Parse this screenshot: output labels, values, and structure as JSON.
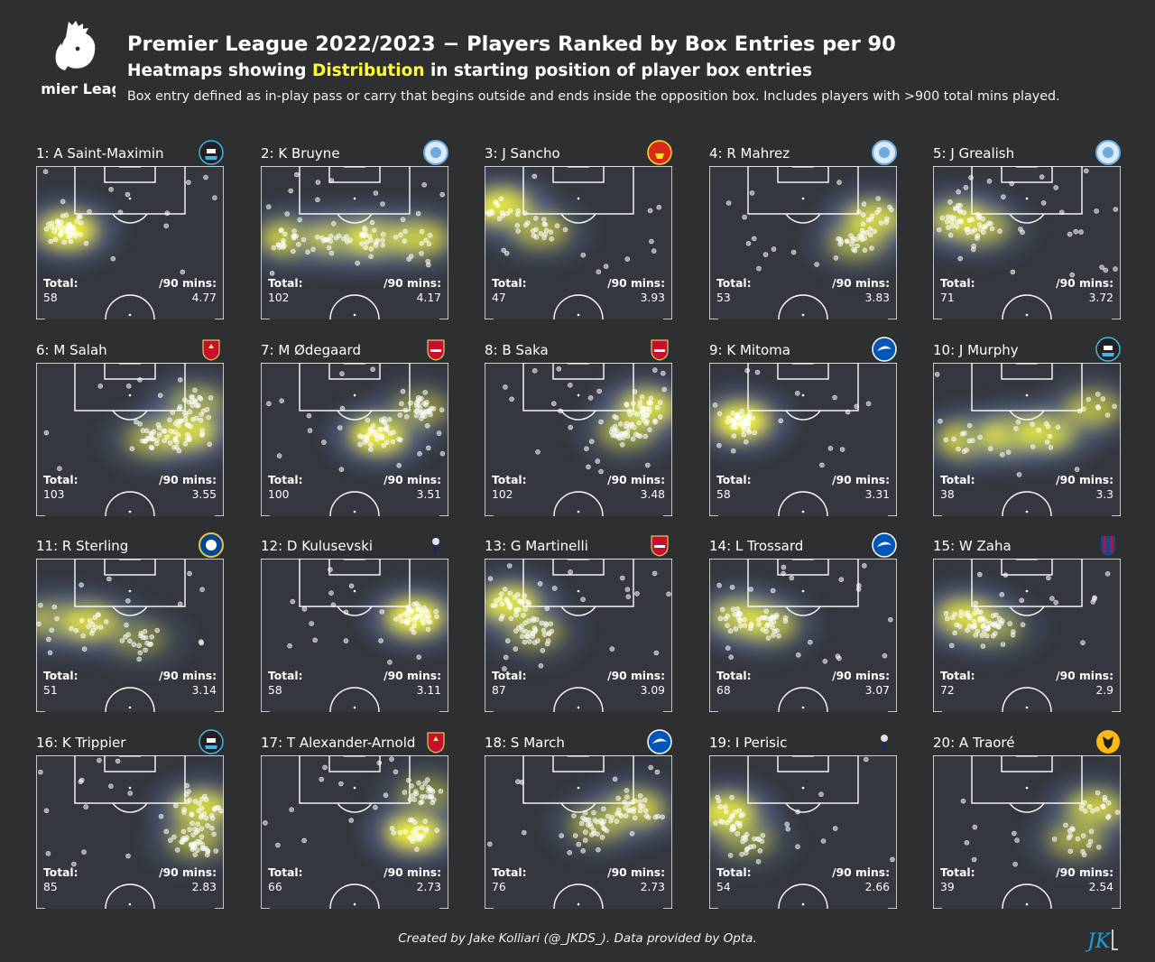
{
  "header": {
    "logo_text": "Premier League",
    "title": "Premier League 2022/2023 − Players Ranked by Box Entries per 90",
    "subtitle_before": "Heatmaps showing ",
    "subtitle_highlight": "Distribution",
    "subtitle_after": " in starting position of player box entries",
    "description": "Box entry defined as in-play pass or carry that begins outside and ends inside the opposition box. Includes players with >900 total mins played."
  },
  "footer": "Created by Jake Kolliari (@_JKDS_). Data provided by Opta.",
  "signature": "JK",
  "colors": {
    "background": "#2e2f31",
    "heat": "#ffff2e",
    "cool": "#5b6c9c",
    "highlight": "#ffff2e",
    "signature": "#1ea0d8"
  },
  "labels": {
    "total": "Total:",
    "per90": "/90 mins:"
  },
  "chart_data": {
    "type": "heatmap",
    "title": "Premier League 2022/2023 − Players Ranked by Box Entries per 90",
    "players": [
      {
        "rank": 1,
        "label": "1: A Saint-Maximin",
        "club": "newcastle-badge",
        "total": "58",
        "per90": "4.77",
        "hotspots": [
          [
            0.17,
            0.42,
            1.0
          ]
        ]
      },
      {
        "rank": 2,
        "label": "2: K Bruyne",
        "club": "man-city-badge",
        "total": "102",
        "per90": "4.17",
        "hotspots": [
          [
            0.15,
            0.47,
            0.75
          ],
          [
            0.42,
            0.47,
            0.85
          ],
          [
            0.62,
            0.47,
            0.9
          ],
          [
            0.85,
            0.47,
            0.7
          ]
        ]
      },
      {
        "rank": 3,
        "label": "3: J Sancho",
        "club": "man-utd-badge",
        "total": "47",
        "per90": "3.93",
        "hotspots": [
          [
            0.1,
            0.27,
            1.0
          ],
          [
            0.3,
            0.42,
            0.55
          ]
        ]
      },
      {
        "rank": 4,
        "label": "4: R Mahrez",
        "club": "man-city-badge",
        "total": "53",
        "per90": "3.83",
        "hotspots": [
          [
            0.87,
            0.35,
            0.95
          ],
          [
            0.78,
            0.5,
            0.5
          ]
        ]
      },
      {
        "rank": 5,
        "label": "5: J Grealish",
        "club": "man-city-badge",
        "total": "71",
        "per90": "3.72",
        "hotspots": [
          [
            0.14,
            0.35,
            0.95
          ],
          [
            0.27,
            0.4,
            0.5
          ]
        ]
      },
      {
        "rank": 6,
        "label": "6: M Salah",
        "club": "liverpool-badge",
        "total": "103",
        "per90": "3.55",
        "hotspots": [
          [
            0.85,
            0.28,
            0.7
          ],
          [
            0.8,
            0.45,
            1.0
          ],
          [
            0.62,
            0.5,
            0.5
          ]
        ]
      },
      {
        "rank": 7,
        "label": "7: M Ødegaard",
        "club": "arsenal-badge",
        "total": "100",
        "per90": "3.51",
        "hotspots": [
          [
            0.63,
            0.47,
            1.0
          ],
          [
            0.85,
            0.3,
            0.45
          ]
        ]
      },
      {
        "rank": 8,
        "label": "8: B Saka",
        "club": "arsenal-badge",
        "total": "102",
        "per90": "3.48",
        "hotspots": [
          [
            0.86,
            0.3,
            1.0
          ],
          [
            0.75,
            0.45,
            0.5
          ]
        ]
      },
      {
        "rank": 9,
        "label": "9: K Mitoma",
        "club": "brighton-badge",
        "total": "58",
        "per90": "3.31",
        "hotspots": [
          [
            0.17,
            0.38,
            1.0
          ]
        ]
      },
      {
        "rank": 10,
        "label": "10: J Murphy",
        "club": "newcastle-badge",
        "total": "38",
        "per90": "3.3",
        "hotspots": [
          [
            0.18,
            0.5,
            0.8
          ],
          [
            0.42,
            0.47,
            0.95
          ],
          [
            0.62,
            0.45,
            0.8
          ],
          [
            0.85,
            0.3,
            0.6
          ]
        ]
      },
      {
        "rank": 11,
        "label": "11: R Sterling",
        "club": "chelsea-badge",
        "total": "51",
        "per90": "3.14",
        "hotspots": [
          [
            0.1,
            0.4,
            0.7
          ],
          [
            0.3,
            0.42,
            0.8
          ],
          [
            0.55,
            0.52,
            0.35
          ]
        ]
      },
      {
        "rank": 12,
        "label": "12: D Kulusevski",
        "club": "tottenham-badge",
        "total": "58",
        "per90": "3.11",
        "hotspots": [
          [
            0.82,
            0.38,
            1.0
          ]
        ]
      },
      {
        "rank": 13,
        "label": "13: G Martinelli",
        "club": "arsenal-badge",
        "total": "87",
        "per90": "3.09",
        "hotspots": [
          [
            0.14,
            0.3,
            1.0
          ],
          [
            0.27,
            0.48,
            0.45
          ]
        ]
      },
      {
        "rank": 14,
        "label": "14: L Trossard",
        "club": "brighton-badge",
        "total": "68",
        "per90": "3.07",
        "hotspots": [
          [
            0.17,
            0.38,
            0.95
          ],
          [
            0.32,
            0.43,
            0.6
          ]
        ]
      },
      {
        "rank": 15,
        "label": "15: W Zaha",
        "club": "crystal-palace-badge",
        "total": "72",
        "per90": "2.9",
        "hotspots": [
          [
            0.18,
            0.38,
            1.0
          ],
          [
            0.33,
            0.45,
            0.4
          ]
        ]
      },
      {
        "rank": 16,
        "label": "16: K Trippier",
        "club": "newcastle-badge",
        "total": "85",
        "per90": "2.83",
        "hotspots": [
          [
            0.88,
            0.35,
            0.9
          ],
          [
            0.85,
            0.55,
            0.5
          ]
        ]
      },
      {
        "rank": 17,
        "label": "17: T Alexander-Arnold",
        "club": "liverpool-badge",
        "total": "66",
        "per90": "2.73",
        "hotspots": [
          [
            0.82,
            0.5,
            1.0
          ],
          [
            0.88,
            0.25,
            0.4
          ]
        ]
      },
      {
        "rank": 18,
        "label": "18: S March",
        "club": "brighton-badge",
        "total": "76",
        "per90": "2.73",
        "hotspots": [
          [
            0.8,
            0.35,
            0.8
          ],
          [
            0.6,
            0.45,
            0.5
          ]
        ]
      },
      {
        "rank": 19,
        "label": "19: I Perisic",
        "club": "tottenham-badge",
        "total": "54",
        "per90": "2.66",
        "hotspots": [
          [
            0.1,
            0.38,
            1.0
          ],
          [
            0.2,
            0.55,
            0.4
          ]
        ]
      },
      {
        "rank": 20,
        "label": "20: A Traoré",
        "club": "wolves-badge",
        "total": "39",
        "per90": "2.54",
        "hotspots": [
          [
            0.86,
            0.35,
            0.8
          ],
          [
            0.76,
            0.55,
            0.5
          ]
        ]
      }
    ]
  }
}
